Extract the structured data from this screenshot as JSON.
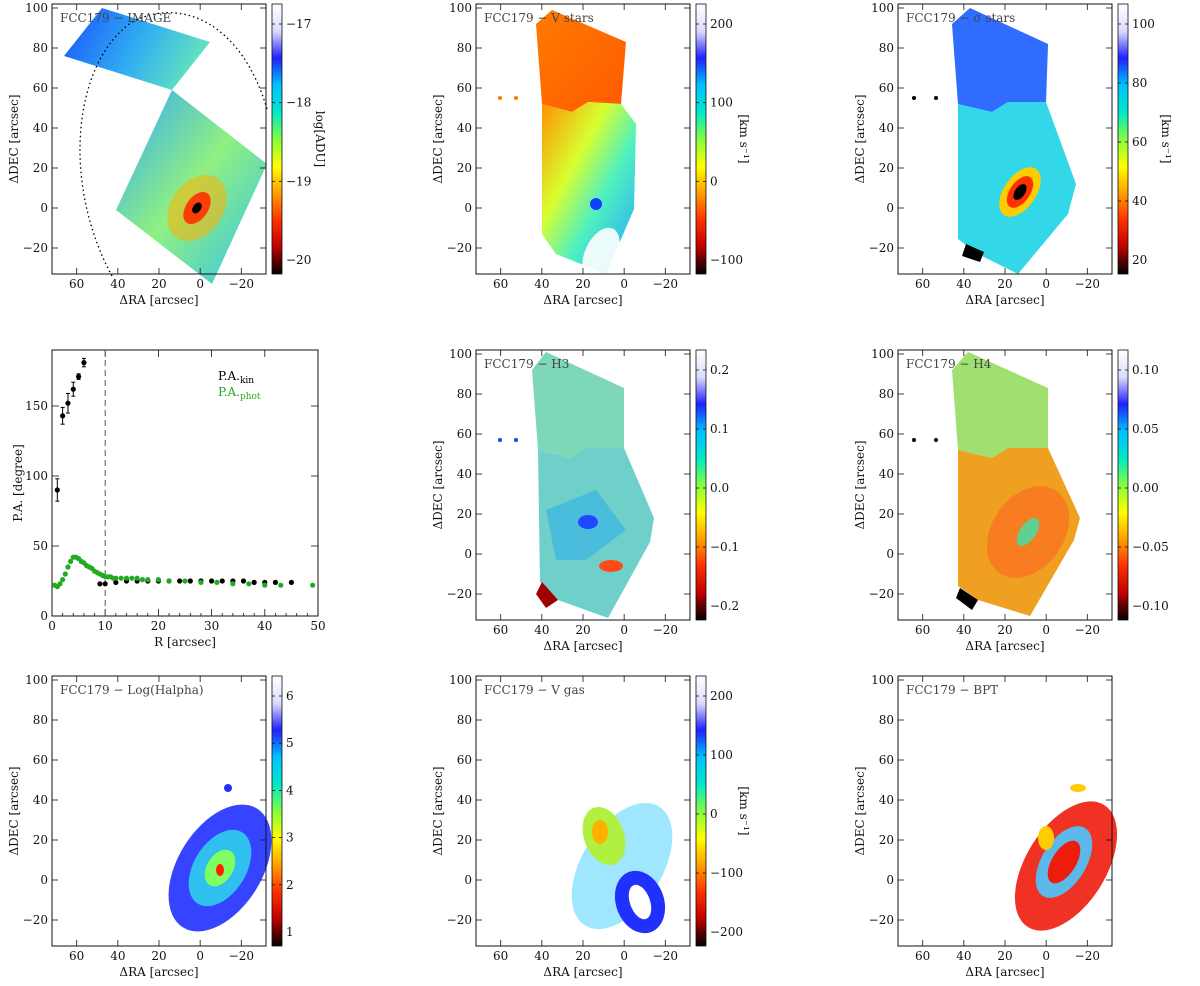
{
  "colors": {
    "colormap": [
      "#ffffff",
      "#dcdcff",
      "#2020ff",
      "#00c0ff",
      "#00e8c8",
      "#80ff40",
      "#ffff00",
      "#ffa000",
      "#ff3000",
      "#c00000",
      "#000000"
    ],
    "kin": "#000000",
    "phot": "#22aa22",
    "bpt_red": "#ee1c0c",
    "bpt_blue": "#5bb8e8",
    "bpt_yellow": "#ffcc00"
  },
  "axes_common": {
    "xlabel": "ΔRA [arcsec]",
    "ylabel": "ΔDEC [arcsec]",
    "xticks": [
      "60",
      "40",
      "20",
      "0",
      "−20"
    ],
    "yticks": [
      "−20",
      "0",
      "20",
      "40",
      "60",
      "80",
      "100"
    ]
  },
  "maps": [
    {
      "title": "FCC179 − IMAGE",
      "colorbar_label": "log[ADU]",
      "colorbar_ticks": [
        "−17",
        "−18",
        "−19",
        "−20"
      ],
      "show_xlabel": true,
      "show_ylabel": true
    },
    {
      "title": "FCC179 − V stars",
      "colorbar_label": "[km s⁻¹]",
      "colorbar_ticks": [
        "200",
        "100",
        "0",
        "−100"
      ],
      "show_xlabel": true,
      "show_ylabel": true
    },
    {
      "title": "FCC179 − σ stars",
      "colorbar_label": "[km s⁻¹]",
      "colorbar_ticks": [
        "100",
        "80",
        "60",
        "40",
        "20"
      ],
      "show_xlabel": true,
      "show_ylabel": true
    },
    {
      "title": "FCC179 − H3",
      "colorbar_label": "",
      "colorbar_ticks": [
        "0.2",
        "0.1",
        "0.0",
        "−0.1",
        "−0.2"
      ],
      "show_xlabel": true,
      "show_ylabel": true
    },
    {
      "title": "FCC179 − H4",
      "colorbar_label": "",
      "colorbar_ticks": [
        "0.10",
        "0.05",
        "0.00",
        "−0.05",
        "−0.10"
      ],
      "show_xlabel": true,
      "show_ylabel": true
    },
    {
      "title": "FCC179 − Log(Halpha)",
      "colorbar_label": "",
      "colorbar_ticks": [
        "6",
        "5",
        "4",
        "3",
        "2",
        "1"
      ],
      "show_xlabel": true,
      "show_ylabel": true
    },
    {
      "title": "FCC179 − V gas",
      "colorbar_label": "[km s⁻¹]",
      "colorbar_ticks": [
        "200",
        "100",
        "0",
        "−100",
        "−200"
      ],
      "show_xlabel": true,
      "show_ylabel": true
    },
    {
      "title": "FCC179 − BPT",
      "colorbar_label": "",
      "colorbar_ticks": [],
      "show_xlabel": true,
      "show_ylabel": true
    }
  ],
  "chart_data": [
    {
      "type": "scatter",
      "title": "",
      "xlabel": "R [arcsec]",
      "ylabel": "P.A. [degree]",
      "xlim": [
        0,
        50
      ],
      "ylim": [
        0,
        190
      ],
      "xticks": [
        "0",
        "10",
        "20",
        "30",
        "40",
        "50"
      ],
      "yticks": [
        "0",
        "50",
        "100",
        "150"
      ],
      "vline": 10,
      "legend_position": "top-right",
      "series": [
        {
          "name": "P.A.kin",
          "legend_main": "P.A.",
          "legend_sub": "kin",
          "x": [
            1,
            2,
            3,
            4,
            5,
            6,
            9,
            10,
            12,
            14,
            16,
            18,
            20,
            22,
            24,
            26,
            28,
            30,
            32,
            34,
            36,
            38,
            40,
            42,
            45
          ],
          "y": [
            90,
            143,
            152,
            162,
            171,
            181,
            23,
            23,
            24,
            25,
            25,
            25,
            25,
            25,
            25,
            25,
            25,
            25,
            25,
            25,
            25,
            24,
            24,
            24,
            24
          ],
          "err": [
            8,
            6,
            7,
            5,
            2,
            3,
            0,
            0,
            0,
            0,
            0,
            0,
            0,
            0,
            0,
            0,
            0,
            0,
            0,
            0,
            0,
            0,
            0,
            0,
            0
          ]
        },
        {
          "name": "P.A.phot",
          "legend_main": "P.A.",
          "legend_sub": "phot",
          "x": [
            0.5,
            1,
            1.5,
            2,
            2.5,
            3,
            3.5,
            4,
            4.5,
            5,
            5.5,
            6,
            6.5,
            7,
            7.5,
            8,
            8.5,
            9,
            9.5,
            10,
            10.5,
            11,
            11.5,
            12,
            13,
            14,
            15,
            16,
            17,
            18,
            20,
            22,
            25,
            28,
            31,
            34,
            37,
            40,
            43,
            49
          ],
          "y": [
            22,
            21,
            23,
            26,
            30,
            35,
            39,
            42,
            42,
            41,
            39,
            38,
            36,
            35,
            34,
            32,
            31,
            30,
            29,
            28,
            28,
            28,
            27,
            27,
            27,
            27,
            27,
            27,
            26,
            26,
            26,
            25,
            25,
            24,
            24,
            23,
            23,
            22,
            22,
            22
          ]
        }
      ]
    }
  ]
}
